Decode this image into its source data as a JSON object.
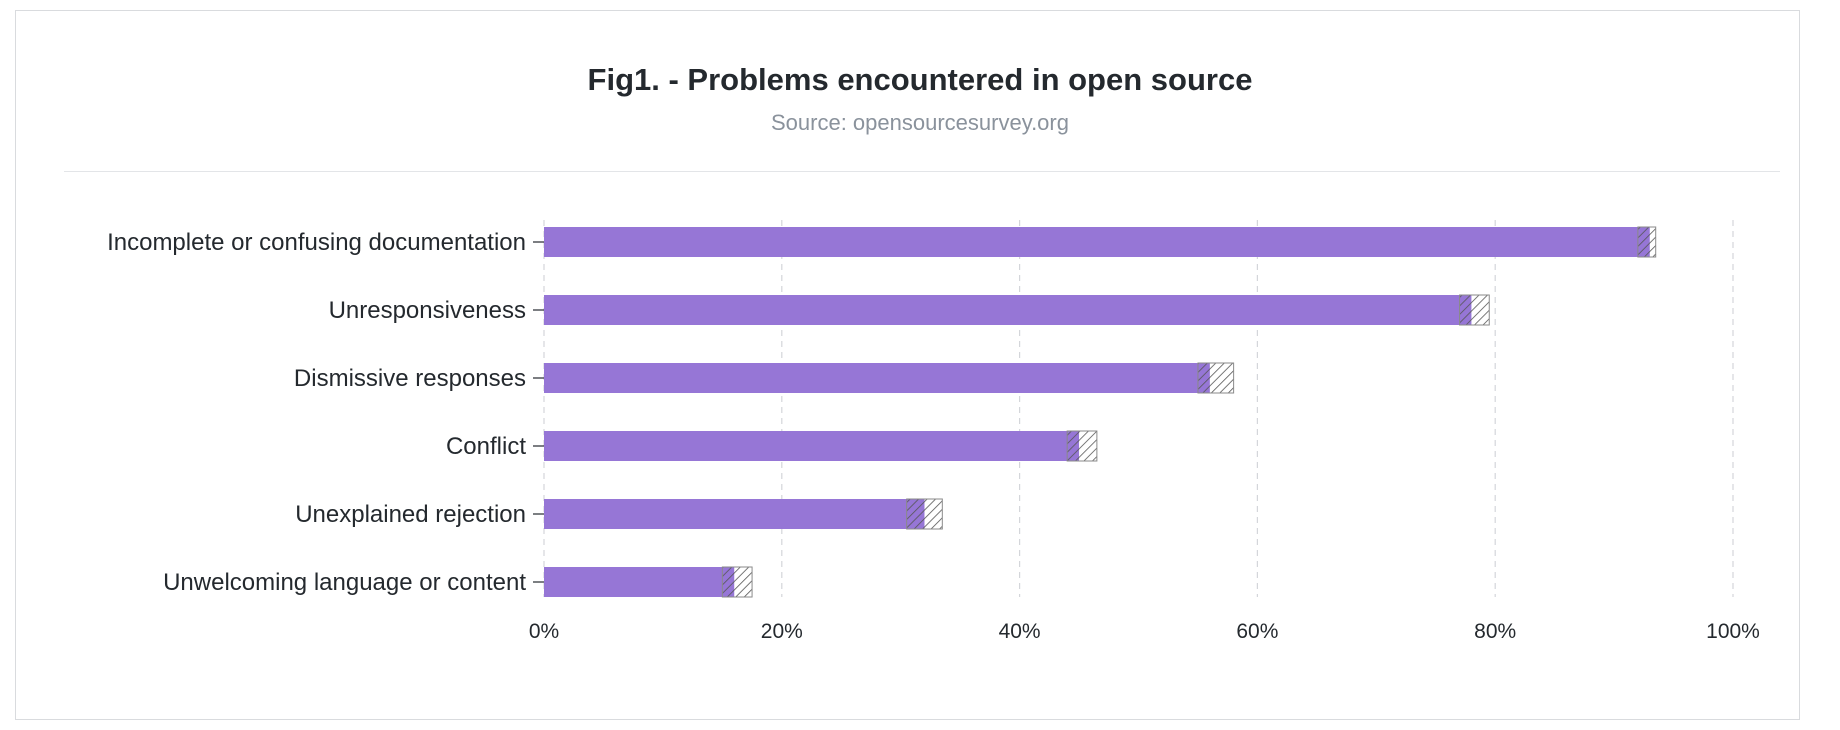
{
  "chart_data": {
    "type": "bar",
    "orientation": "horizontal",
    "title": "Fig1. - Problems encountered in open source",
    "subtitle": "Source: opensourcesurvey.org",
    "categories": [
      "Incomplete or confusing documentation",
      "Unresponsiveness",
      "Dismissive responses",
      "Conflict",
      "Unexplained rejection",
      "Unwelcoming language or content"
    ],
    "values": [
      93,
      78,
      56,
      45,
      32,
      16
    ],
    "error_ranges": [
      [
        92,
        93.5
      ],
      [
        77,
        79.5
      ],
      [
        55,
        58
      ],
      [
        44,
        46.5
      ],
      [
        30.5,
        33.5
      ],
      [
        15,
        17.5
      ]
    ],
    "xlim": [
      0,
      100
    ],
    "xticks": [
      "0%",
      "20%",
      "40%",
      "60%",
      "80%",
      "100%"
    ],
    "grid": "vertical dashed",
    "colors": {
      "bar": "#9676d6",
      "hatch": "#555555"
    }
  }
}
